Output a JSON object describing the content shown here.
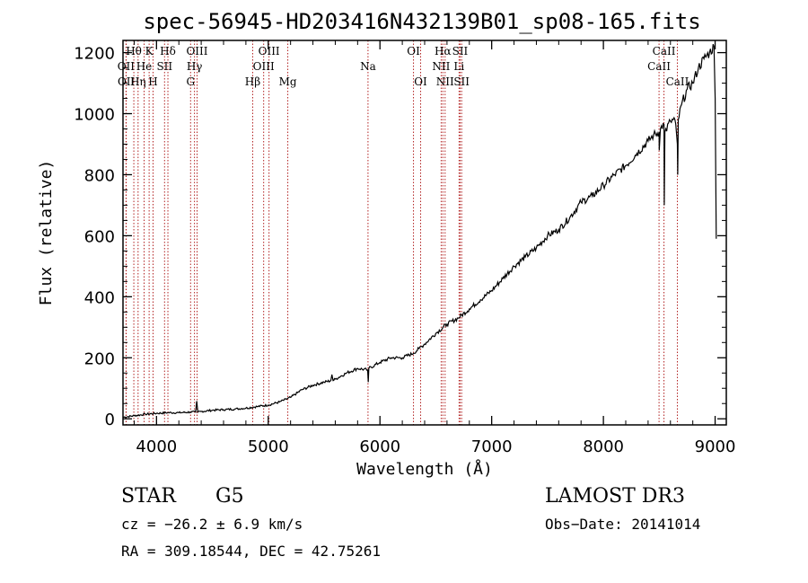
{
  "chart_data": {
    "type": "line",
    "title": "spec-56945-HD203416N432139B01_sp08-165.fits",
    "xlabel": "Wavelength (Å)",
    "ylabel": "Flux (relative)",
    "xlim": [
      3700,
      9100
    ],
    "ylim": [
      -20,
      1240
    ],
    "xticks": [
      4000,
      5000,
      6000,
      7000,
      8000,
      9000
    ],
    "yticks": [
      0,
      200,
      400,
      600,
      800,
      1000,
      1200
    ],
    "xtick_labels": [
      "4000",
      "5000",
      "6000",
      "7000",
      "8000",
      "9000"
    ],
    "ytick_labels": [
      "0",
      "200",
      "400",
      "600",
      "800",
      "1000",
      "1200"
    ],
    "series": [
      {
        "name": "flux",
        "x": [
          3700,
          3800,
          3900,
          4000,
          4100,
          4200,
          4300,
          4350,
          4360,
          4370,
          4400,
          4500,
          4600,
          4700,
          4800,
          4900,
          5000,
          5100,
          5200,
          5300,
          5400,
          5500,
          5560,
          5570,
          5580,
          5600,
          5700,
          5800,
          5890,
          5895,
          5900,
          6000,
          6100,
          6200,
          6300,
          6350,
          6400,
          6500,
          6600,
          6700,
          6800,
          6900,
          7000,
          7100,
          7200,
          7300,
          7400,
          7500,
          7600,
          7700,
          7800,
          7900,
          8000,
          8100,
          8200,
          8300,
          8400,
          8450,
          8498,
          8500,
          8510,
          8520,
          8542,
          8545,
          8550,
          8600,
          8640,
          8662,
          8665,
          8670,
          8700,
          8750,
          8800,
          8850,
          8900,
          8950,
          8990,
          9000,
          9010
        ],
        "y": [
          5,
          10,
          15,
          18,
          20,
          20,
          22,
          22,
          58,
          22,
          24,
          28,
          30,
          32,
          35,
          40,
          45,
          55,
          70,
          95,
          110,
          120,
          125,
          145,
          125,
          130,
          150,
          165,
          160,
          120,
          165,
          185,
          200,
          200,
          215,
          230,
          245,
          280,
          310,
          330,
          360,
          390,
          420,
          460,
          500,
          530,
          560,
          600,
          620,
          660,
          710,
          730,
          765,
          800,
          830,
          870,
          910,
          930,
          940,
          880,
          950,
          960,
          965,
          700,
          940,
          975,
          980,
          900,
          800,
          980,
          1030,
          1080,
          1100,
          1150,
          1180,
          1200,
          1220,
          1050,
          590
        ]
      }
    ],
    "lines": [
      {
        "name": "Hθ",
        "x": 3797,
        "row": 0
      },
      {
        "name": "OII",
        "x": 3727,
        "row": 1
      },
      {
        "name": "OII",
        "x": 3729,
        "row": 2
      },
      {
        "name": "Hη",
        "x": 3835,
        "row": 2
      },
      {
        "name": "He",
        "x": 3889,
        "row": 1
      },
      {
        "name": "K",
        "x": 3934,
        "row": 0
      },
      {
        "name": "H",
        "x": 3969,
        "row": 2
      },
      {
        "name": "Hδ",
        "x": 4102,
        "row": 0
      },
      {
        "name": "SII",
        "x": 4072,
        "row": 1
      },
      {
        "name": "OIII",
        "x": 4363,
        "row": 0
      },
      {
        "name": "Hγ",
        "x": 4340,
        "row": 1
      },
      {
        "name": "G",
        "x": 4305,
        "row": 2
      },
      {
        "name": "Hβ",
        "x": 4861,
        "row": 2
      },
      {
        "name": "OIII",
        "x": 4959,
        "row": 1
      },
      {
        "name": "OIII",
        "x": 5007,
        "row": 0
      },
      {
        "name": "Mg",
        "x": 5175,
        "row": 2
      },
      {
        "name": "Na",
        "x": 5893,
        "row": 1
      },
      {
        "name": "OI",
        "x": 6300,
        "row": 0
      },
      {
        "name": "OI",
        "x": 6364,
        "row": 2
      },
      {
        "name": "Hα",
        "x": 6563,
        "row": 0
      },
      {
        "name": "NII",
        "x": 6548,
        "row": 1
      },
      {
        "name": "NII",
        "x": 6583,
        "row": 2
      },
      {
        "name": "SII",
        "x": 6717,
        "row": 0
      },
      {
        "name": "Li",
        "x": 6708,
        "row": 1
      },
      {
        "name": "SII",
        "x": 6731,
        "row": 2
      },
      {
        "name": "CaII",
        "x": 8542,
        "row": 0
      },
      {
        "name": "CaII",
        "x": 8498,
        "row": 1
      },
      {
        "name": "CaII",
        "x": 8662,
        "row": 2
      }
    ]
  },
  "info": {
    "object_class": "STAR",
    "subclass": "G5",
    "survey": "LAMOST DR3",
    "cz": "cz = −26.2 ± 6.9 km/s",
    "obs_date": "Obs−Date: 20141014",
    "coords": "RA = 309.18544, DEC =  42.75261"
  },
  "colors": {
    "axis": "#000000",
    "spectrum": "#000000",
    "line_marker": "#b22222"
  }
}
